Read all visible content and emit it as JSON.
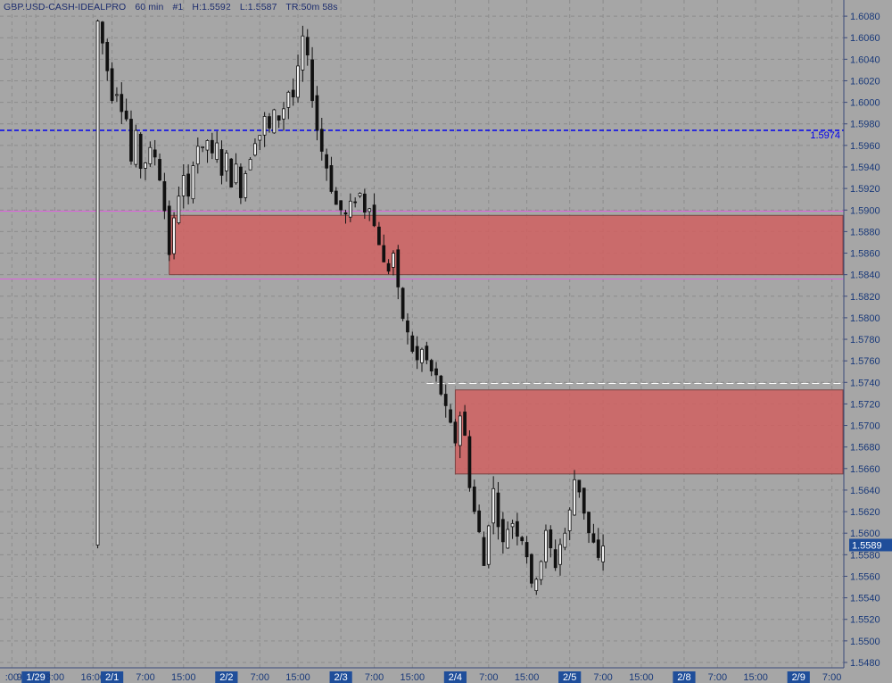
{
  "header": {
    "symbol": "GBP.USD-CASH-IDEALPRO",
    "interval": "60 min",
    "tag": "#1",
    "high_label": "H:1.5592",
    "low_label": "L:1.5587",
    "time_remaining": "TR:50m 58s"
  },
  "colors": {
    "background": "#a6a6a6",
    "grid": "#8c8c8c",
    "axis_text": "#1a3a7a",
    "candle": "#111111",
    "zone_fill": "#d06060",
    "blue_line": "#0000ee",
    "magenta_line": "#e060e0",
    "price_badge": "#1f4e9a"
  },
  "chart_data": {
    "type": "candlestick",
    "y_axis": {
      "side": "right",
      "range": [
        1.5475,
        1.6095
      ],
      "tick_labels": [
        "1.6080",
        "1.6060",
        "1.6040",
        "1.6020",
        "1.6000",
        "1.5980",
        "1.5960",
        "1.5940",
        "1.5920",
        "1.5900",
        "1.5880",
        "1.5860",
        "1.5840",
        "1.5820",
        "1.5800",
        "1.5780",
        "1.5760",
        "1.5740",
        "1.5720",
        "1.5700",
        "1.5680",
        "1.5660",
        "1.5640",
        "1.5620",
        "1.5600",
        "1.5580",
        "1.5560",
        "1.5540",
        "1.5520",
        "1.5500",
        "1.5480"
      ]
    },
    "x_axis": {
      "tick_labels": [
        {
          "text": ":00",
          "hour": -25,
          "date": false
        },
        {
          "text": "9:00",
          "hour": -22,
          "date": false
        },
        {
          "text": "1/29",
          "hour": -20,
          "date": true
        },
        {
          "text": "8:00",
          "hour": -16,
          "date": false
        },
        {
          "text": "16:00",
          "hour": -8,
          "date": false
        },
        {
          "text": "2/1",
          "hour": -4,
          "date": true
        },
        {
          "text": "7:00",
          "hour": 3,
          "date": false
        },
        {
          "text": "15:00",
          "hour": 11,
          "date": false
        },
        {
          "text": "2/2",
          "hour": 20,
          "date": true
        },
        {
          "text": "7:00",
          "hour": 27,
          "date": false
        },
        {
          "text": "15:00",
          "hour": 35,
          "date": false
        },
        {
          "text": "2/3",
          "hour": 44,
          "date": true
        },
        {
          "text": "7:00",
          "hour": 51,
          "date": false
        },
        {
          "text": "15:00",
          "hour": 59,
          "date": false
        },
        {
          "text": "2/4",
          "hour": 68,
          "date": true
        },
        {
          "text": "7:00",
          "hour": 75,
          "date": false
        },
        {
          "text": "15:00",
          "hour": 83,
          "date": false
        },
        {
          "text": "2/5",
          "hour": 92,
          "date": true
        },
        {
          "text": "7:00",
          "hour": 99,
          "date": false
        },
        {
          "text": "15:00",
          "hour": 107,
          "date": false
        },
        {
          "text": "2/8",
          "hour": 116,
          "date": true
        },
        {
          "text": "7:00",
          "hour": 123,
          "date": false
        },
        {
          "text": "15:00",
          "hour": 131,
          "date": false
        },
        {
          "text": "2/9",
          "hour": 140,
          "date": true
        },
        {
          "text": "7:00",
          "hour": 147,
          "date": false
        }
      ],
      "hour_range": [
        -27.5,
        149.5
      ]
    },
    "grid": true,
    "price_path": [
      {
        "h": -7,
        "p": 1.6075
      },
      {
        "h": -6,
        "p": 1.6055
      },
      {
        "h": -5,
        "p": 1.603
      },
      {
        "h": -4,
        "p": 1.6005
      },
      {
        "h": -3,
        "p": 1.601
      },
      {
        "h": -2,
        "p": 1.5995
      },
      {
        "h": -1,
        "p": 1.5985
      },
      {
        "h": 0,
        "p": 1.5945
      },
      {
        "h": 1,
        "p": 1.597
      },
      {
        "h": 2,
        "p": 1.594
      },
      {
        "h": 3,
        "p": 1.5945
      },
      {
        "h": 4,
        "p": 1.5955
      },
      {
        "h": 5,
        "p": 1.595
      },
      {
        "h": 6,
        "p": 1.593
      },
      {
        "h": 7,
        "p": 1.59
      },
      {
        "h": 8,
        "p": 1.586
      },
      {
        "h": 9,
        "p": 1.589
      },
      {
        "h": 10,
        "p": 1.5915
      },
      {
        "h": 11,
        "p": 1.593
      },
      {
        "h": 12,
        "p": 1.591
      },
      {
        "h": 13,
        "p": 1.5945
      },
      {
        "h": 14,
        "p": 1.596
      },
      {
        "h": 15,
        "p": 1.5955
      },
      {
        "h": 16,
        "p": 1.5965
      },
      {
        "h": 17,
        "p": 1.595
      },
      {
        "h": 18,
        "p": 1.596
      },
      {
        "h": 19,
        "p": 1.5935
      },
      {
        "h": 20,
        "p": 1.595
      },
      {
        "h": 21,
        "p": 1.5925
      },
      {
        "h": 22,
        "p": 1.594
      },
      {
        "h": 23,
        "p": 1.5915
      },
      {
        "h": 24,
        "p": 1.5935
      },
      {
        "h": 25,
        "p": 1.595
      },
      {
        "h": 26,
        "p": 1.5965
      },
      {
        "h": 27,
        "p": 1.597
      },
      {
        "h": 28,
        "p": 1.5985
      },
      {
        "h": 29,
        "p": 1.5975
      },
      {
        "h": 30,
        "p": 1.599
      },
      {
        "h": 31,
        "p": 1.5985
      },
      {
        "h": 32,
        "p": 1.5995
      },
      {
        "h": 33,
        "p": 1.601
      },
      {
        "h": 34,
        "p": 1.6005
      },
      {
        "h": 35,
        "p": 1.603
      },
      {
        "h": 36,
        "p": 1.606
      },
      {
        "h": 37,
        "p": 1.604
      },
      {
        "h": 38,
        "p": 1.6005
      },
      {
        "h": 39,
        "p": 1.5975
      },
      {
        "h": 40,
        "p": 1.5955
      },
      {
        "h": 41,
        "p": 1.594
      },
      {
        "h": 42,
        "p": 1.592
      },
      {
        "h": 43,
        "p": 1.5905
      },
      {
        "h": 44,
        "p": 1.59
      },
      {
        "h": 45,
        "p": 1.5895
      },
      {
        "h": 46,
        "p": 1.5905
      },
      {
        "h": 47,
        "p": 1.591
      },
      {
        "h": 48,
        "p": 1.5915
      },
      {
        "h": 49,
        "p": 1.59
      },
      {
        "h": 50,
        "p": 1.5905
      },
      {
        "h": 51,
        "p": 1.5885
      },
      {
        "h": 52,
        "p": 1.587
      },
      {
        "h": 53,
        "p": 1.585
      },
      {
        "h": 54,
        "p": 1.5845
      },
      {
        "h": 55,
        "p": 1.586
      },
      {
        "h": 56,
        "p": 1.5825
      },
      {
        "h": 57,
        "p": 1.58
      },
      {
        "h": 58,
        "p": 1.5785
      },
      {
        "h": 59,
        "p": 1.577
      },
      {
        "h": 60,
        "p": 1.576
      },
      {
        "h": 61,
        "p": 1.577
      },
      {
        "h": 62,
        "p": 1.576
      },
      {
        "h": 63,
        "p": 1.575
      },
      {
        "h": 64,
        "p": 1.5745
      },
      {
        "h": 65,
        "p": 1.573
      },
      {
        "h": 66,
        "p": 1.5715
      },
      {
        "h": 67,
        "p": 1.57
      },
      {
        "h": 68,
        "p": 1.5685
      },
      {
        "h": 69,
        "p": 1.571
      },
      {
        "h": 70,
        "p": 1.569
      },
      {
        "h": 71,
        "p": 1.5645
      },
      {
        "h": 72,
        "p": 1.562
      },
      {
        "h": 73,
        "p": 1.56
      },
      {
        "h": 74,
        "p": 1.557
      },
      {
        "h": 75,
        "p": 1.561
      },
      {
        "h": 76,
        "p": 1.564
      },
      {
        "h": 77,
        "p": 1.561
      },
      {
        "h": 78,
        "p": 1.559
      },
      {
        "h": 79,
        "p": 1.5605
      },
      {
        "h": 80,
        "p": 1.561
      },
      {
        "h": 81,
        "p": 1.56
      },
      {
        "h": 82,
        "p": 1.5595
      },
      {
        "h": 83,
        "p": 1.558
      },
      {
        "h": 84,
        "p": 1.555
      },
      {
        "h": 85,
        "p": 1.556
      },
      {
        "h": 86,
        "p": 1.5575
      },
      {
        "h": 87,
        "p": 1.56
      },
      {
        "h": 88,
        "p": 1.5585
      },
      {
        "h": 89,
        "p": 1.557
      },
      {
        "h": 90,
        "p": 1.559
      },
      {
        "h": 91,
        "p": 1.56
      },
      {
        "h": 92,
        "p": 1.562
      },
      {
        "h": 93,
        "p": 1.565
      },
      {
        "h": 94,
        "p": 1.564
      },
      {
        "h": 95,
        "p": 1.562
      },
      {
        "h": 96,
        "p": 1.56
      },
      {
        "h": 97,
        "p": 1.559
      },
      {
        "h": 98,
        "p": 1.5575
      },
      {
        "h": 99,
        "p": 1.5589
      }
    ],
    "candle_hour_range": [
      -7,
      99
    ],
    "zones": [
      {
        "from_hour": 8,
        "top": 1.5895,
        "bottom": 1.584
      },
      {
        "from_hour": 68,
        "top": 1.5733,
        "bottom": 1.5655
      }
    ],
    "horizontal_lines": [
      {
        "price": 1.5974,
        "style": "dashed",
        "color": "blue",
        "label": "1.5974"
      },
      {
        "price": 1.5899,
        "style": "solid",
        "color": "magenta",
        "label": ""
      },
      {
        "price": 1.5836,
        "style": "solid",
        "color": "magenta",
        "label": ""
      },
      {
        "price": 1.5739,
        "style": "dashed",
        "color": "white",
        "from_hour": 62,
        "label": ""
      }
    ],
    "last_price": {
      "price": 1.5589,
      "label": "1.5589"
    }
  }
}
